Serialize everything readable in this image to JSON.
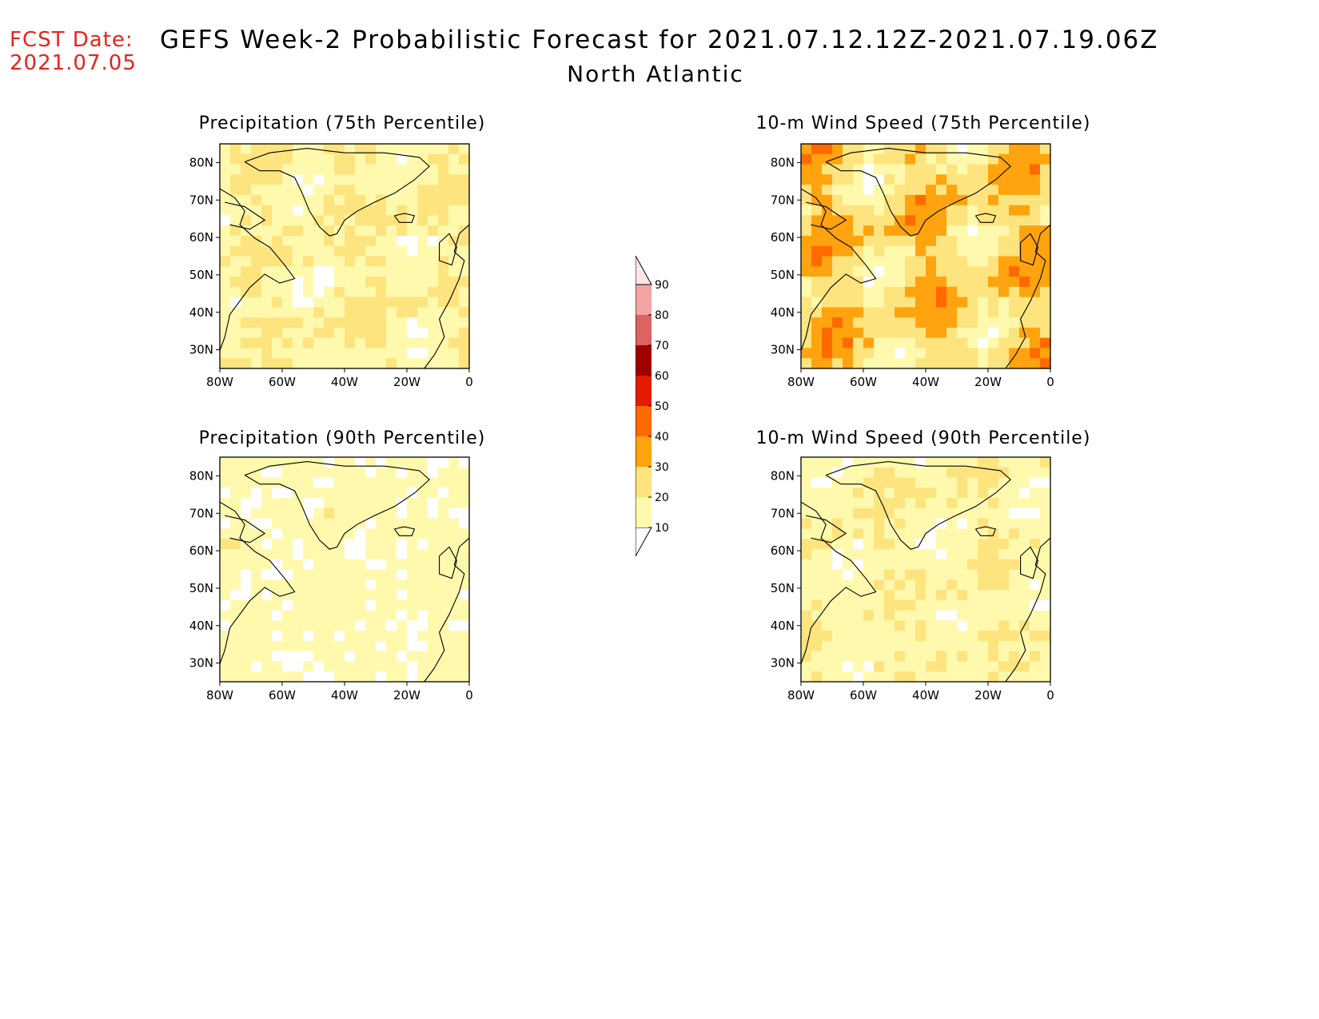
{
  "forecast_date": {
    "label": "FCST Date:",
    "value": "2021.07.05"
  },
  "title": "GEFS Week-2 Probabilistic Forecast for 2021.07.12.12Z-2021.07.19.06Z",
  "region": "North Atlantic",
  "panels": [
    {
      "title": "Precipitation (75th Percentile)",
      "intensity": 0.55
    },
    {
      "title": "10-m Wind Speed (75th Percentile)",
      "intensity": 1.2
    },
    {
      "title": "Precipitation (90th Percentile)",
      "intensity": 0.15
    },
    {
      "title": "10-m Wind Speed (90th Percentile)",
      "intensity": 0.45
    }
  ],
  "axes": {
    "lat_labels": [
      "80N",
      "70N",
      "60N",
      "50N",
      "40N",
      "30N"
    ],
    "lon_labels": [
      "80W",
      "60W",
      "40W",
      "20W",
      "0"
    ]
  },
  "colorbar": {
    "levels": [
      "10",
      "20",
      "30",
      "40",
      "50",
      "60",
      "70",
      "80",
      "90"
    ],
    "colors": [
      "#ffffff",
      "#fff9ae",
      "#fde47e",
      "#ffa30e",
      "#ff6a00",
      "#e21c00",
      "#a10000",
      "#dd6262",
      "#f4a4a4",
      "#fde6e6"
    ]
  }
}
